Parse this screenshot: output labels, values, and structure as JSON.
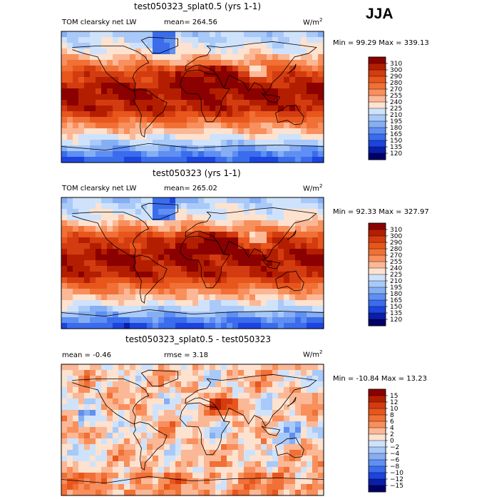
{
  "season": "JJA",
  "chart_data": [
    {
      "type": "heatmap",
      "title": "test050323_splat0.5 (yrs 1-1)",
      "variable": "TOM clearsky net LW",
      "stat_left": "mean= 264.56",
      "units": "W/m",
      "units_exp": "2",
      "range_text": "Min = 99.29  Max = 339.13",
      "min": 99.29,
      "max": 339.13,
      "mean": 264.56,
      "colorbar_levels": [
        "310",
        "300",
        "290",
        "280",
        "270",
        "255",
        "240",
        "225",
        "210",
        "195",
        "180",
        "165",
        "150",
        "135",
        "120"
      ],
      "colorbar_colors": [
        "#8b0000",
        "#b41e00",
        "#d23c10",
        "#e8561c",
        "#f07036",
        "#f88f5c",
        "#fbb896",
        "#fde2cf",
        "#cfe2fb",
        "#a9c9f8",
        "#86aef2",
        "#5f8ff2",
        "#3a6cec",
        "#1c44de",
        "#0a1ea8",
        "#000066"
      ],
      "colorbar_bins": [
        17,
        16,
        15,
        14,
        13,
        12,
        11,
        10,
        9,
        8,
        7,
        6,
        5,
        4,
        3,
        2
      ]
    },
    {
      "type": "heatmap",
      "title": "test050323 (yrs 1-1)",
      "variable": "TOM clearsky net LW",
      "stat_left": "mean= 265.02",
      "units": "W/m",
      "units_exp": "2",
      "range_text": "Min = 92.33  Max = 327.97",
      "min": 92.33,
      "max": 327.97,
      "mean": 265.02,
      "colorbar_levels": [
        "310",
        "300",
        "290",
        "280",
        "270",
        "255",
        "240",
        "225",
        "210",
        "195",
        "180",
        "165",
        "150",
        "135",
        "120"
      ],
      "colorbar_colors": [
        "#8b0000",
        "#b41e00",
        "#d23c10",
        "#e8561c",
        "#f07036",
        "#f88f5c",
        "#fbb896",
        "#fde2cf",
        "#cfe2fb",
        "#a9c9f8",
        "#86aef2",
        "#5f8ff2",
        "#3a6cec",
        "#1c44de",
        "#0a1ea8",
        "#000066"
      ],
      "colorbar_bins": [
        17,
        16,
        15,
        14,
        13,
        12,
        11,
        10,
        9,
        8,
        7,
        6,
        5,
        4,
        3,
        2
      ]
    },
    {
      "type": "heatmap",
      "title": "test050323_splat0.5 - test050323",
      "stat_left": "mean = -0.46",
      "stat_mid": "rmse = 3.18",
      "units": "W/m",
      "units_exp": "2",
      "range_text": "Min = -10.84  Max = 13.23",
      "min": -10.84,
      "max": 13.23,
      "mean": -0.46,
      "rmse": 3.18,
      "colorbar_levels": [
        "15",
        "12",
        "10",
        "8",
        "6",
        "4",
        "2",
        "0",
        "−2",
        "−4",
        "−6",
        "−8",
        "−10",
        "−12",
        "−15"
      ],
      "colorbar_colors": [
        "#8b0000",
        "#b41e00",
        "#d23c10",
        "#e8561c",
        "#f07036",
        "#f88f5c",
        "#fbb896",
        "#fde2cf",
        "#cfe2fb",
        "#a9c9f8",
        "#86aef2",
        "#5f8ff2",
        "#3a6cec",
        "#1c44de",
        "#0a1ea8",
        "#000066"
      ],
      "colorbar_bins": [
        16,
        15,
        14,
        13,
        12,
        11,
        10,
        9,
        8,
        7,
        6,
        5,
        4,
        3,
        2,
        1
      ]
    }
  ]
}
